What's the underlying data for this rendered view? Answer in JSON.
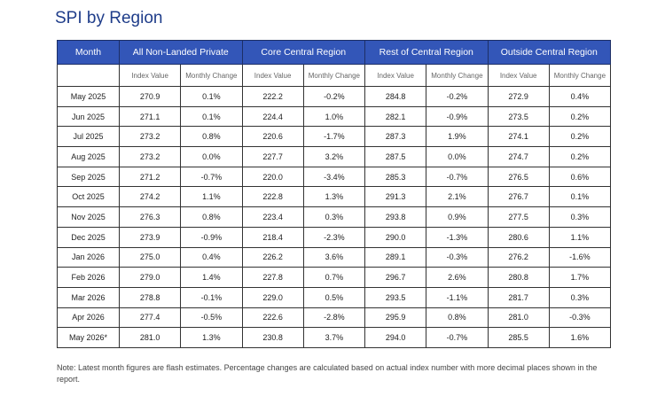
{
  "header": {
    "title": "SPI by Region"
  },
  "table": {
    "month_header": "Month",
    "groups": [
      "All Non-Landed Private",
      "Core Central Region",
      "Rest of Central Region",
      "Outside Central Region"
    ],
    "subheaders": [
      "Index Value",
      "Monthly Change"
    ],
    "rows": [
      [
        "May 2025",
        "270.9",
        "0.1%",
        "222.2",
        "-0.2%",
        "284.8",
        "-0.2%",
        "272.9",
        "0.4%"
      ],
      [
        "Jun 2025",
        "271.1",
        "0.1%",
        "224.4",
        "1.0%",
        "282.1",
        "-0.9%",
        "273.5",
        "0.2%"
      ],
      [
        "Jul 2025",
        "273.2",
        "0.8%",
        "220.6",
        "-1.7%",
        "287.3",
        "1.9%",
        "274.1",
        "0.2%"
      ],
      [
        "Aug 2025",
        "273.2",
        "0.0%",
        "227.7",
        "3.2%",
        "287.5",
        "0.0%",
        "274.7",
        "0.2%"
      ],
      [
        "Sep 2025",
        "271.2",
        "-0.7%",
        "220.0",
        "-3.4%",
        "285.3",
        "-0.7%",
        "276.5",
        "0.6%"
      ],
      [
        "Oct 2025",
        "274.2",
        "1.1%",
        "222.8",
        "1.3%",
        "291.3",
        "2.1%",
        "276.7",
        "0.1%"
      ],
      [
        "Nov 2025",
        "276.3",
        "0.8%",
        "223.4",
        "0.3%",
        "293.8",
        "0.9%",
        "277.5",
        "0.3%"
      ],
      [
        "Dec 2025",
        "273.9",
        "-0.9%",
        "218.4",
        "-2.3%",
        "290.0",
        "-1.3%",
        "280.6",
        "1.1%"
      ],
      [
        "Jan 2026",
        "275.0",
        "0.4%",
        "226.2",
        "3.6%",
        "289.1",
        "-0.3%",
        "276.2",
        "-1.6%"
      ],
      [
        "Feb 2026",
        "279.0",
        "1.4%",
        "227.8",
        "0.7%",
        "296.7",
        "2.6%",
        "280.8",
        "1.7%"
      ],
      [
        "Mar 2026",
        "278.8",
        "-0.1%",
        "229.0",
        "0.5%",
        "293.5",
        "-1.1%",
        "281.7",
        "0.3%"
      ],
      [
        "Apr 2026",
        "277.4",
        "-0.5%",
        "222.6",
        "-2.8%",
        "295.9",
        "0.8%",
        "281.0",
        "-0.3%"
      ],
      [
        "May 2026*",
        "281.0",
        "1.3%",
        "230.8",
        "3.7%",
        "294.0",
        "-0.7%",
        "285.5",
        "1.6%"
      ]
    ]
  },
  "note": "Note: Latest month figures are flash estimates. Percentage changes are calculated based on actual index number with more decimal places shown in the report."
}
